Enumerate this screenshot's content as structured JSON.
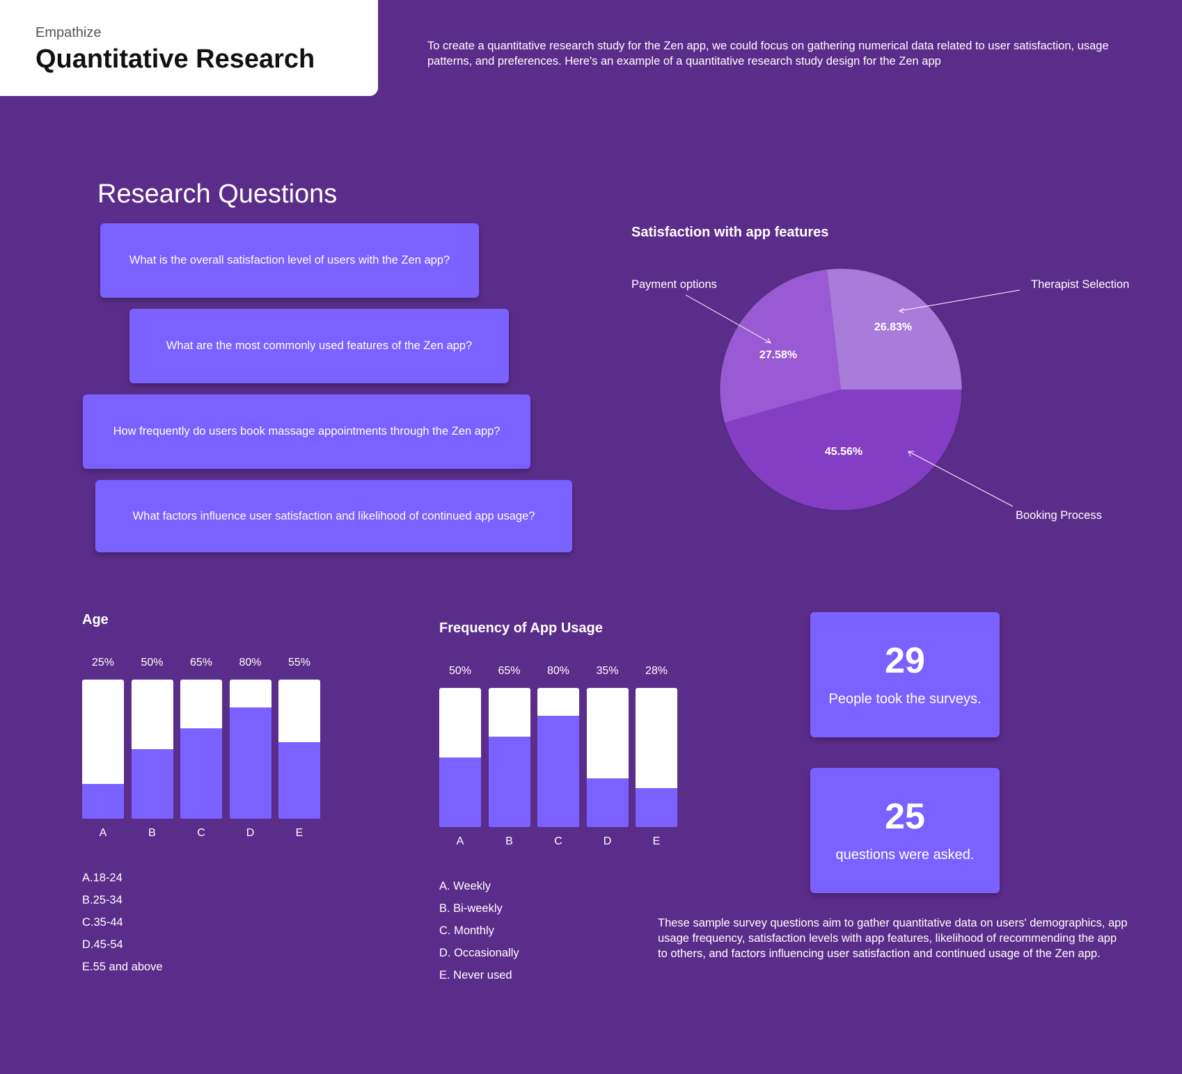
{
  "header": {
    "eyebrow": "Empathize",
    "title": "Quantitative Research"
  },
  "intro": "To create a quantitative research study for the Zen app, we could focus on gathering numerical data related to user satisfaction, usage patterns, and preferences. Here's an example of a quantitative research study design for the Zen app",
  "research": {
    "title": "Research Questions",
    "questions": [
      "What is the overall satisfaction level of users with the Zen app?",
      "What are the most commonly used features of the Zen app?",
      "How frequently do users book massage appointments through the Zen app?",
      "What factors influence user satisfaction and likelihood of continued app usage?"
    ]
  },
  "stats": [
    {
      "number": "29",
      "text": "People took the surveys."
    },
    {
      "number": "25",
      "text": "questions were asked."
    }
  ],
  "summary": "These sample survey questions aim to gather quantitative data on users' demographics, app usage frequency, satisfaction levels with app features, likelihood of recommending the app to others, and factors influencing user satisfaction and continued usage of the Zen app.",
  "colors": {
    "background": "#5b2d8a",
    "accent": "#7b61ff",
    "slice_therapist": "#a97bdb",
    "slice_payment": "#995ad3",
    "slice_booking": "#833ec4"
  },
  "chart_data": [
    {
      "type": "pie",
      "title": "Satisfaction with app features",
      "slices": [
        {
          "name": "Therapist Selection",
          "value": 26.83,
          "label": "26.83%"
        },
        {
          "name": "Payment options",
          "value": 27.58,
          "label": "27.58%"
        },
        {
          "name": "Booking Process",
          "value": 45.56,
          "label": "45.56%"
        }
      ]
    },
    {
      "type": "bar",
      "title": "Age",
      "categories": [
        "A",
        "B",
        "C",
        "D",
        "E"
      ],
      "values": [
        25,
        50,
        65,
        80,
        55
      ],
      "value_labels": [
        "25%",
        "50%",
        "65%",
        "80%",
        "55%"
      ],
      "ylim": [
        0,
        100
      ],
      "legend": [
        "A.18-24",
        "B.25-34",
        "C.35-44",
        "D.45-54",
        "E.55 and above"
      ]
    },
    {
      "type": "bar",
      "title": "Frequency of App Usage",
      "categories": [
        "A",
        "B",
        "C",
        "D",
        "E"
      ],
      "values": [
        50,
        65,
        80,
        35,
        28
      ],
      "value_labels": [
        "50%",
        "65%",
        "80%",
        "35%",
        "28%"
      ],
      "ylim": [
        0,
        100
      ],
      "legend": [
        "A. Weekly",
        "B. Bi-weekly",
        "C. Monthly",
        "D. Occasionally",
        "E. Never used"
      ]
    }
  ]
}
